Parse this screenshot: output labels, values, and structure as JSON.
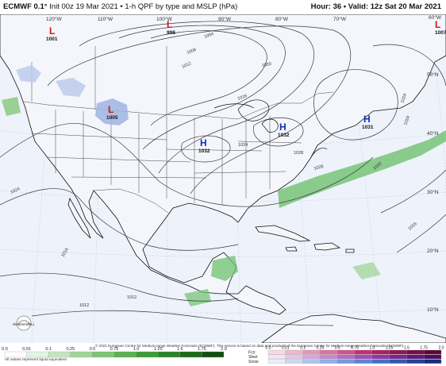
{
  "header": {
    "model": "ECMWF 0.1°",
    "init": "Init 00z 19 Mar 2021",
    "product": "1-h QPF by type and MSLP (hPa)",
    "hour_label": "Hour: 36",
    "valid_label": "Valid: 12z Sat 20 Mar 2021"
  },
  "map": {
    "lon_labels": [
      "120°W",
      "110°W",
      "100°W",
      "90°W",
      "80°W",
      "70°W",
      "60°W"
    ],
    "lat_labels": [
      "50°N",
      "40°N",
      "30°N",
      "20°N",
      "10°N"
    ],
    "highs": [
      {
        "symbol": "H",
        "value": "1032"
      },
      {
        "symbol": "H",
        "value": "1032"
      },
      {
        "symbol": "H",
        "value": "1031"
      }
    ],
    "lows": [
      {
        "symbol": "L",
        "value": "1001"
      },
      {
        "symbol": "L",
        "value": "998"
      },
      {
        "symbol": "L",
        "value": "1005"
      },
      {
        "symbol": "L",
        "value": "1007"
      }
    ],
    "isobar_labels": [
      "1004",
      "1008",
      "1012",
      "1016",
      "1020",
      "1024",
      "1028",
      "1012",
      "1012",
      "1016",
      "1024",
      "1024",
      "1020",
      "1016",
      "1028",
      "1024"
    ],
    "colors": {
      "ocean": "#eef2fb",
      "land": "#f4f6fc",
      "isobar": "#3a3a3a",
      "coast": "#111111",
      "rain": "#6fc06f",
      "snow": "#9fb4e0",
      "low_symbol": "#d81010",
      "high_symbol": "#1030b0"
    }
  },
  "footer": {
    "credit": "© 2021 European Centre for Medium-range Weather Forecasts (ECMWF). This service is based on data and products of the European Centre for Medium-range Weather Forecasts (ECMWF).",
    "note": "All values represent liquid equivalent",
    "logo_text": "WeatherBELL",
    "qpf_ticks": [
      "0.0",
      "0.01",
      "0.1",
      "0.25",
      "0.5",
      "0.75",
      "1.0",
      "1.25",
      "1.5",
      "1.75",
      "2.0"
    ],
    "qpf_colors": [
      "#ffffff",
      "#e3f4e0",
      "#c2e6bc",
      "#9fd596",
      "#7cc473",
      "#59b150",
      "#3c9c36",
      "#2a8326",
      "#1c6a1a",
      "#114f10"
    ],
    "ptype_labels": [
      "Frzr",
      "Sleet",
      "Snow"
    ],
    "ptype_ticks": [
      "0.0",
      "0.01",
      "0.1",
      "0.25",
      "0.5",
      "0.75",
      "1.0",
      "1.25",
      "1.5",
      "1.75",
      "2.0"
    ],
    "frzr_colors": [
      "#f7d9e6",
      "#efb7cf",
      "#e595b8",
      "#dc73a1",
      "#d2518a",
      "#c42f73",
      "#ad1f62",
      "#941552",
      "#7a0c43",
      "#620535"
    ],
    "sleet_colors": [
      "#f2e4f4",
      "#e3c6e8",
      "#d3a8dc",
      "#c38ad0",
      "#b36cc4",
      "#a04eb4",
      "#8d38a3",
      "#782690",
      "#62177a",
      "#4d0b66"
    ],
    "snow_colors": [
      "#e7eefb",
      "#cbd9f4",
      "#afc4ec",
      "#93afe5",
      "#779add",
      "#5b85d5",
      "#4470c7",
      "#3259b0",
      "#214396",
      "#142e7a"
    ]
  }
}
